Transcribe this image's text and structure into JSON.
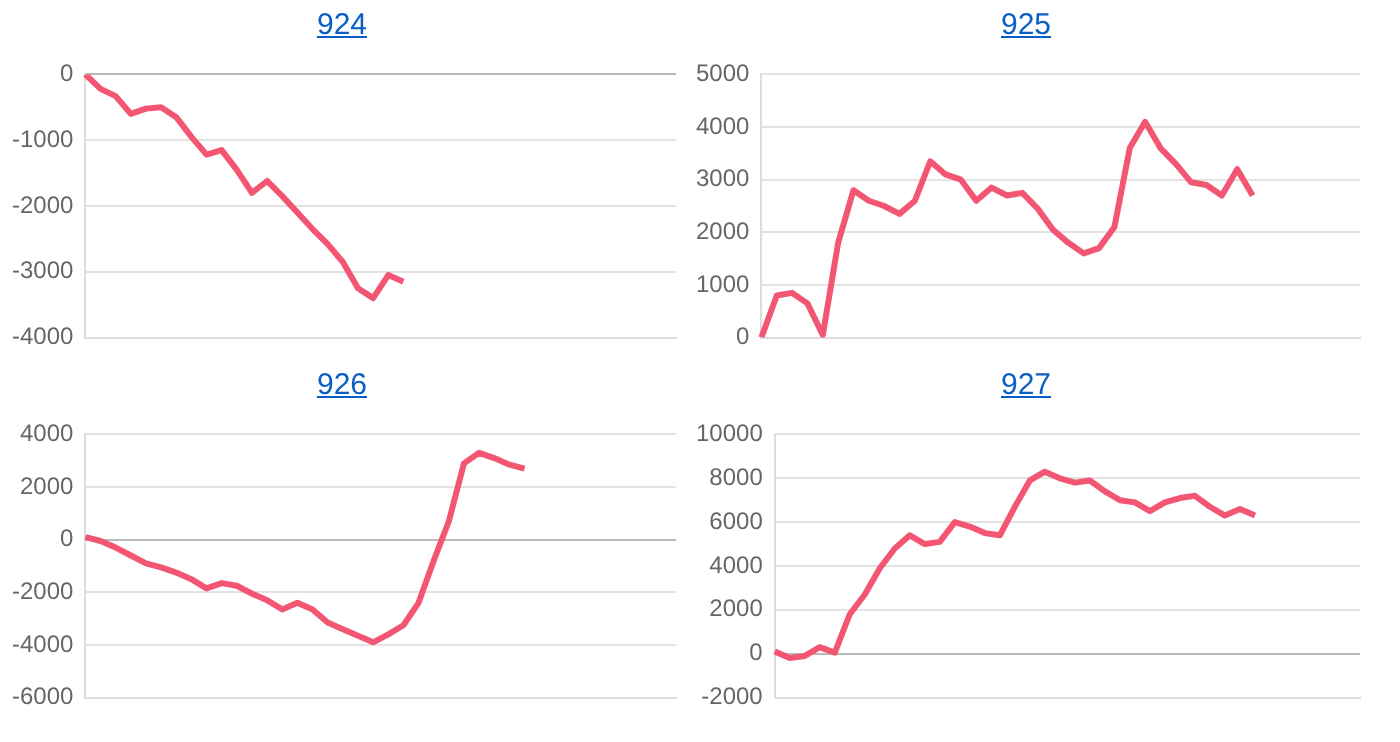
{
  "chart_data": [
    {
      "type": "line",
      "title": "924",
      "categories": [
        null,
        null,
        null,
        null,
        null,
        null,
        null,
        null,
        null,
        null,
        null,
        null,
        null,
        null,
        null,
        null,
        null,
        null,
        null,
        null,
        null,
        null,
        null,
        null,
        null,
        null,
        null,
        null,
        null,
        null,
        null,
        null,
        null,
        null,
        null,
        null,
        null,
        null,
        null,
        null
      ],
      "series": [
        {
          "color": "#f25672",
          "values": [
            0,
            -220,
            -330,
            -600,
            -520,
            -500,
            -650,
            -950,
            -1220,
            -1150,
            -1450,
            -1800,
            -1620,
            -1850,
            -2100,
            -2350,
            -2580,
            -2850,
            -3250,
            -3400,
            -3050,
            -3150,
            null,
            null,
            null,
            null,
            null,
            null,
            null,
            null,
            null,
            null,
            null,
            null,
            null,
            null,
            null,
            null,
            null,
            null
          ]
        }
      ],
      "ylim": [
        -4000,
        0
      ],
      "yticks": [
        -4000,
        -3000,
        -2000,
        -1000,
        0
      ],
      "grid": "y",
      "tick_labels": "y",
      "legend": false,
      "marker": "none",
      "line_style": "solid"
    },
    {
      "type": "line",
      "title": "925",
      "categories": [
        null,
        null,
        null,
        null,
        null,
        null,
        null,
        null,
        null,
        null,
        null,
        null,
        null,
        null,
        null,
        null,
        null,
        null,
        null,
        null,
        null,
        null,
        null,
        null,
        null,
        null,
        null,
        null,
        null,
        null,
        null,
        null,
        null,
        null,
        null,
        null,
        null,
        null,
        null,
        null
      ],
      "series": [
        {
          "color": "#f25672",
          "values": [
            0,
            800,
            850,
            650,
            50,
            1800,
            2800,
            2600,
            2500,
            2350,
            2600,
            3350,
            3100,
            3000,
            2600,
            2850,
            2700,
            2750,
            2450,
            2050,
            1800,
            1600,
            1700,
            2100,
            3600,
            4100,
            3600,
            3300,
            2950,
            2900,
            2700,
            3200,
            2700,
            null,
            null,
            null,
            null,
            null,
            null,
            null
          ]
        }
      ],
      "ylim": [
        0,
        5000
      ],
      "yticks": [
        0,
        1000,
        2000,
        3000,
        4000,
        5000
      ],
      "grid": "y",
      "tick_labels": "y",
      "legend": false,
      "marker": "none",
      "line_style": "solid"
    },
    {
      "type": "line",
      "title": "926",
      "categories": [
        null,
        null,
        null,
        null,
        null,
        null,
        null,
        null,
        null,
        null,
        null,
        null,
        null,
        null,
        null,
        null,
        null,
        null,
        null,
        null,
        null,
        null,
        null,
        null,
        null,
        null,
        null,
        null,
        null,
        null,
        null,
        null,
        null,
        null,
        null,
        null,
        null,
        null,
        null,
        null
      ],
      "series": [
        {
          "color": "#f25672",
          "values": [
            100,
            -50,
            -300,
            -600,
            -900,
            -1050,
            -1250,
            -1500,
            -1850,
            -1650,
            -1750,
            -2050,
            -2300,
            -2650,
            -2400,
            -2650,
            -3150,
            -3400,
            -3650,
            -3900,
            -3600,
            -3250,
            -2400,
            -800,
            700,
            2900,
            3300,
            3100,
            2850,
            2700,
            null,
            null,
            null,
            null,
            null,
            null,
            null,
            null,
            null,
            null
          ]
        }
      ],
      "ylim": [
        -6000,
        4000
      ],
      "yticks": [
        -6000,
        -4000,
        -2000,
        0,
        2000,
        4000
      ],
      "grid": "y",
      "tick_labels": "y",
      "legend": false,
      "marker": "none",
      "line_style": "solid"
    },
    {
      "type": "line",
      "title": "927",
      "categories": [
        null,
        null,
        null,
        null,
        null,
        null,
        null,
        null,
        null,
        null,
        null,
        null,
        null,
        null,
        null,
        null,
        null,
        null,
        null,
        null,
        null,
        null,
        null,
        null,
        null,
        null,
        null,
        null,
        null,
        null,
        null,
        null,
        null,
        null,
        null,
        null,
        null,
        null,
        null,
        null
      ],
      "series": [
        {
          "color": "#f25672",
          "values": [
            100,
            -200,
            -100,
            300,
            50,
            1800,
            2700,
            3900,
            4800,
            5400,
            5000,
            5100,
            6000,
            5800,
            5500,
            5400,
            6700,
            7900,
            8300,
            8000,
            7800,
            7900,
            7400,
            7000,
            6900,
            6500,
            6900,
            7100,
            7200,
            6700,
            6300,
            6600,
            6300,
            null,
            null,
            null,
            null,
            null,
            null,
            null
          ]
        }
      ],
      "ylim": [
        -2000,
        10000
      ],
      "yticks": [
        -2000,
        0,
        2000,
        4000,
        6000,
        8000,
        10000
      ],
      "grid": "y",
      "tick_labels": "y",
      "legend": false,
      "marker": "none",
      "line_style": "solid"
    }
  ]
}
